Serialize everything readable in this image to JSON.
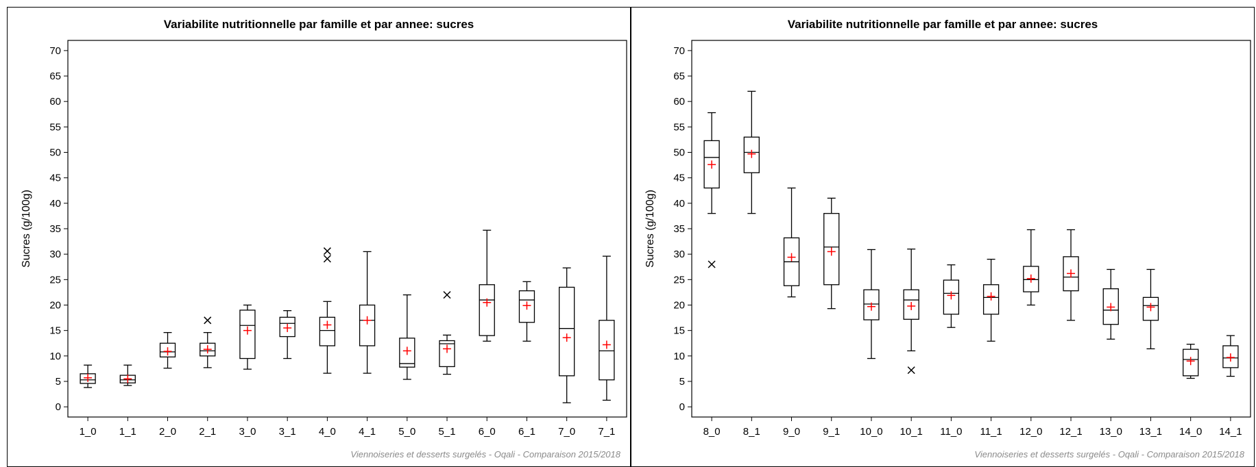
{
  "chart_data": [
    {
      "type": "boxplot",
      "title": "Variabilite nutritionnelle par famille et par annee: sucres",
      "ylabel": "Sucres (g/100g)",
      "xlabel": "",
      "ylim": [
        -2,
        72
      ],
      "yticks": [
        0,
        5,
        10,
        15,
        20,
        25,
        30,
        35,
        40,
        45,
        50,
        55,
        60,
        65,
        70
      ],
      "footnote": "Viennoiseries et desserts surgelés - Oqali - Comparaison 2015/2018",
      "categories": [
        "1_0",
        "1_1",
        "2_0",
        "2_1",
        "3_0",
        "3_1",
        "4_0",
        "4_1",
        "5_0",
        "5_1",
        "6_0",
        "6_1",
        "7_0",
        "7_1"
      ],
      "boxes": [
        {
          "min": 3.8,
          "q1": 4.6,
          "median": 5.3,
          "q3": 6.5,
          "max": 8.2,
          "mean": 5.7,
          "outliers": []
        },
        {
          "min": 4.2,
          "q1": 4.7,
          "median": 5.3,
          "q3": 6.2,
          "max": 8.2,
          "mean": 5.5,
          "outliers": []
        },
        {
          "min": 7.6,
          "q1": 9.8,
          "median": 10.8,
          "q3": 12.5,
          "max": 14.6,
          "mean": 10.9,
          "outliers": []
        },
        {
          "min": 7.7,
          "q1": 10.0,
          "median": 11.0,
          "q3": 12.5,
          "max": 14.6,
          "mean": 11.3,
          "outliers": [
            17.0
          ]
        },
        {
          "min": 7.4,
          "q1": 9.5,
          "median": 16.0,
          "q3": 19.0,
          "max": 20.0,
          "mean": 15.0,
          "outliers": []
        },
        {
          "min": 9.5,
          "q1": 13.8,
          "median": 16.4,
          "q3": 17.6,
          "max": 18.9,
          "mean": 15.5,
          "outliers": []
        },
        {
          "min": 6.6,
          "q1": 12.0,
          "median": 15.0,
          "q3": 17.6,
          "max": 20.7,
          "mean": 16.1,
          "outliers": [
            29.1,
            30.6
          ]
        },
        {
          "min": 6.6,
          "q1": 12.0,
          "median": 17.0,
          "q3": 20.0,
          "max": 30.5,
          "mean": 17.0,
          "outliers": []
        },
        {
          "min": 5.4,
          "q1": 7.8,
          "median": 8.5,
          "q3": 13.5,
          "max": 22.0,
          "mean": 11.0,
          "outliers": []
        },
        {
          "min": 6.4,
          "q1": 7.9,
          "median": 12.4,
          "q3": 13.0,
          "max": 14.1,
          "mean": 11.4,
          "outliers": [
            22.0
          ]
        },
        {
          "min": 12.9,
          "q1": 14.0,
          "median": 21.0,
          "q3": 24.0,
          "max": 34.7,
          "mean": 20.5,
          "outliers": []
        },
        {
          "min": 12.9,
          "q1": 16.6,
          "median": 21.0,
          "q3": 22.8,
          "max": 24.6,
          "mean": 19.9,
          "outliers": []
        },
        {
          "min": 0.8,
          "q1": 6.1,
          "median": 15.4,
          "q3": 23.5,
          "max": 27.3,
          "mean": 13.6,
          "outliers": []
        },
        {
          "min": 1.3,
          "q1": 5.3,
          "median": 11.0,
          "q3": 17.0,
          "max": 29.6,
          "mean": 12.2,
          "outliers": []
        }
      ]
    },
    {
      "type": "boxplot",
      "title": "Variabilite nutritionnelle par famille et par annee: sucres",
      "ylabel": "Sucres (g/100g)",
      "xlabel": "",
      "ylim": [
        -2,
        72
      ],
      "yticks": [
        0,
        5,
        10,
        15,
        20,
        25,
        30,
        35,
        40,
        45,
        50,
        55,
        60,
        65,
        70
      ],
      "footnote": "Viennoiseries et desserts surgelés - Oqali - Comparaison 2015/2018",
      "categories": [
        "8_0",
        "8_1",
        "9_0",
        "9_1",
        "10_0",
        "10_1",
        "11_0",
        "11_1",
        "12_0",
        "12_1",
        "13_0",
        "13_1",
        "14_0",
        "14_1"
      ],
      "boxes": [
        {
          "min": 38.0,
          "q1": 43.0,
          "median": 49.0,
          "q3": 52.3,
          "max": 57.8,
          "mean": 47.6,
          "outliers": [
            28.0
          ]
        },
        {
          "min": 38.0,
          "q1": 46.0,
          "median": 50.0,
          "q3": 53.0,
          "max": 62.0,
          "mean": 49.7,
          "outliers": []
        },
        {
          "min": 21.6,
          "q1": 23.8,
          "median": 28.5,
          "q3": 33.2,
          "max": 43.0,
          "mean": 29.4,
          "outliers": []
        },
        {
          "min": 19.3,
          "q1": 24.0,
          "median": 31.4,
          "q3": 38.0,
          "max": 41.0,
          "mean": 30.5,
          "outliers": []
        },
        {
          "min": 9.5,
          "q1": 17.1,
          "median": 20.2,
          "q3": 23.0,
          "max": 30.9,
          "mean": 19.7,
          "outliers": []
        },
        {
          "min": 11.0,
          "q1": 17.2,
          "median": 21.0,
          "q3": 23.0,
          "max": 31.0,
          "mean": 19.8,
          "outliers": [
            7.2
          ]
        },
        {
          "min": 15.6,
          "q1": 18.2,
          "median": 22.3,
          "q3": 24.9,
          "max": 27.9,
          "mean": 21.9,
          "outliers": []
        },
        {
          "min": 12.9,
          "q1": 18.2,
          "median": 21.5,
          "q3": 24.0,
          "max": 29.0,
          "mean": 21.7,
          "outliers": []
        },
        {
          "min": 20.0,
          "q1": 22.6,
          "median": 25.0,
          "q3": 27.6,
          "max": 34.8,
          "mean": 25.2,
          "outliers": []
        },
        {
          "min": 17.0,
          "q1": 22.8,
          "median": 25.5,
          "q3": 29.5,
          "max": 34.8,
          "mean": 26.2,
          "outliers": []
        },
        {
          "min": 13.3,
          "q1": 16.2,
          "median": 19.0,
          "q3": 23.2,
          "max": 27.0,
          "mean": 19.6,
          "outliers": []
        },
        {
          "min": 11.4,
          "q1": 17.0,
          "median": 19.9,
          "q3": 21.5,
          "max": 27.0,
          "mean": 19.6,
          "outliers": []
        },
        {
          "min": 5.6,
          "q1": 6.1,
          "median": 9.3,
          "q3": 11.3,
          "max": 12.3,
          "mean": 9.0,
          "outliers": []
        },
        {
          "min": 6.0,
          "q1": 7.7,
          "median": 9.6,
          "q3": 12.0,
          "max": 14.0,
          "mean": 9.7,
          "outliers": []
        }
      ]
    }
  ],
  "colors": {
    "box": "#000000",
    "mean_marker": "#ff0000",
    "footnote": "#8a8a8a"
  },
  "markers": {
    "mean": "plus",
    "outlier": "x"
  }
}
